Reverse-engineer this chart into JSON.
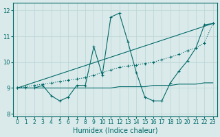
{
  "xlabel": "Humidex (Indice chaleur)",
  "bg_color": "#daeaea",
  "grid_color": "#b8d4d4",
  "line_color": "#006868",
  "xlim": [
    -0.5,
    23.5
  ],
  "ylim": [
    7.9,
    12.3
  ],
  "xticks": [
    0,
    1,
    2,
    3,
    4,
    5,
    6,
    7,
    8,
    9,
    10,
    11,
    12,
    13,
    14,
    15,
    16,
    17,
    18,
    19,
    20,
    21,
    22,
    23
  ],
  "yticks": [
    8,
    9,
    10,
    11,
    12
  ],
  "series": [
    {
      "x": [
        0,
        1,
        2,
        3,
        4,
        5,
        6,
        7,
        8,
        9,
        10,
        11,
        12,
        13,
        14,
        15,
        16,
        17,
        18,
        19,
        20,
        21,
        22,
        23
      ],
      "y": [
        9.0,
        9.0,
        9.0,
        9.0,
        9.0,
        9.0,
        9.0,
        9.0,
        9.0,
        9.0,
        9.0,
        9.0,
        9.05,
        9.05,
        9.05,
        9.05,
        9.1,
        9.1,
        9.1,
        9.15,
        9.15,
        9.15,
        9.2,
        9.2
      ],
      "linestyle": "-",
      "marker": null
    },
    {
      "x": [
        0,
        23
      ],
      "y": [
        9.0,
        11.5
      ],
      "linestyle": "-",
      "marker": null
    },
    {
      "x": [
        0,
        1,
        2,
        3,
        4,
        5,
        6,
        7,
        8,
        9,
        10,
        11,
        12,
        13,
        14,
        15,
        16,
        17,
        18,
        19,
        20,
        21,
        22,
        23
      ],
      "y": [
        9.0,
        9.0,
        9.0,
        9.1,
        8.7,
        8.5,
        8.65,
        9.1,
        9.1,
        10.6,
        9.5,
        11.75,
        11.9,
        10.8,
        9.6,
        8.65,
        8.5,
        8.5,
        9.2,
        9.65,
        10.05,
        10.55,
        11.45,
        11.5
      ],
      "linestyle": "-",
      "marker": "+"
    },
    {
      "x": [
        0,
        1,
        2,
        3,
        4,
        5,
        6,
        7,
        8,
        9,
        10,
        11,
        12,
        13,
        14,
        15,
        16,
        17,
        18,
        19,
        20,
        21,
        22,
        23
      ],
      "y": [
        9.0,
        9.05,
        9.1,
        9.15,
        9.2,
        9.25,
        9.3,
        9.35,
        9.4,
        9.5,
        9.6,
        9.7,
        9.8,
        9.85,
        9.9,
        9.95,
        10.0,
        10.1,
        10.2,
        10.3,
        10.45,
        10.55,
        10.75,
        11.5
      ],
      "linestyle": ":",
      "marker": "+"
    }
  ]
}
